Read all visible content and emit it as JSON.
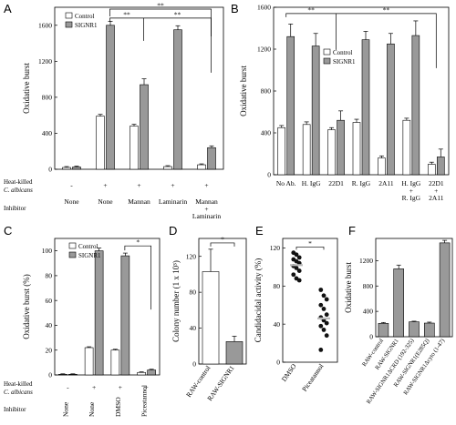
{
  "panels": [
    {
      "letter": "A"
    },
    {
      "letter": "B"
    },
    {
      "letter": "C"
    },
    {
      "letter": "D"
    },
    {
      "letter": "E"
    },
    {
      "letter": "F"
    }
  ],
  "chart_data": [
    {
      "panel": "A",
      "type": "bar",
      "ylabel": "Oxidative burst",
      "ylim": [
        0,
        1800
      ],
      "yticks": [
        0,
        400,
        800,
        1200,
        1600
      ],
      "series": [
        {
          "name": "Control",
          "color": "#ffffff",
          "values": [
            20,
            590,
            480,
            30,
            50
          ],
          "errors": [
            5,
            15,
            15,
            5,
            5
          ]
        },
        {
          "name": "SIGNR1",
          "color": "#999999",
          "values": [
            25,
            1600,
            940,
            1550,
            240
          ],
          "errors": [
            5,
            40,
            60,
            40,
            15
          ]
        }
      ],
      "row1_label": "Heat-killed",
      "row1_label2": "C. albicans",
      "row1": [
        "-",
        "+",
        "+",
        "+",
        "+"
      ],
      "row2_label": "Inhibitor",
      "row2": [
        "None",
        "None",
        "Mannan",
        "Laminarin",
        "Mannan\n+\nLaminarin"
      ],
      "significance": [
        {
          "from": 1,
          "to": 2,
          "label": "**"
        },
        {
          "from": 2,
          "to": 4,
          "label": "**"
        },
        {
          "from": 1,
          "to": 4,
          "label": "**"
        }
      ]
    },
    {
      "panel": "B",
      "type": "bar",
      "ylabel": "Oxidative burst",
      "ylim": [
        0,
        1600
      ],
      "yticks": [
        0,
        400,
        800,
        1200,
        1600
      ],
      "categories": [
        "No Ab.",
        "H. IgG",
        "22D1",
        "R. IgG",
        "2A11",
        "H. IgG\n+\nR. IgG",
        "22D1\n+\n2A11"
      ],
      "series": [
        {
          "name": "Control",
          "color": "#ffffff",
          "values": [
            450,
            480,
            430,
            500,
            160,
            520,
            100
          ],
          "errors": [
            10,
            15,
            10,
            20,
            10,
            10,
            10
          ]
        },
        {
          "name": "SIGNR1",
          "color": "#999999",
          "values": [
            1320,
            1230,
            520,
            1290,
            1250,
            1330,
            170
          ],
          "errors": [
            60,
            60,
            30,
            20,
            40,
            80,
            15
          ]
        }
      ],
      "significance": [
        {
          "from": 0,
          "to": 2,
          "label": "**"
        },
        {
          "from": 2,
          "to": 6,
          "label": "**"
        }
      ]
    },
    {
      "panel": "C",
      "type": "bar",
      "ylabel": "Oxidative burst  (%)",
      "ylim": [
        0,
        110
      ],
      "yticks": [
        0,
        20,
        40,
        60,
        80,
        100
      ],
      "series": [
        {
          "name": "Control",
          "color": "#ffffff",
          "values": [
            0.5,
            22,
            20,
            2
          ],
          "errors": [
            0.2,
            0.5,
            0.5,
            0.3
          ]
        },
        {
          "name": "SIGNR1",
          "color": "#999999",
          "values": [
            0.5,
            100,
            96,
            4
          ],
          "errors": [
            0.2,
            2,
            2,
            0.4
          ]
        }
      ],
      "row1_label": "Heat-killed",
      "row1_label2": "C. albicans",
      "row1": [
        "-",
        "+",
        "+",
        "+"
      ],
      "row2_label": "Inhibitor",
      "row2": [
        "None",
        "None",
        "DMSO",
        "Piceatannol"
      ],
      "significance": [
        {
          "from": 2,
          "to": 3,
          "label": "*"
        }
      ]
    },
    {
      "panel": "D",
      "type": "bar",
      "ylabel": "Colony number  (1 x 10³)",
      "ylim": [
        0,
        140
      ],
      "yticks": [
        0,
        40,
        80,
        120
      ],
      "categories": [
        "RAW-control",
        "RAW-SIGNR1"
      ],
      "values": [
        103,
        25
      ],
      "errors": [
        25,
        6
      ],
      "colors": [
        "#ffffff",
        "#999999"
      ],
      "significance": [
        {
          "from": 0,
          "to": 1,
          "label": "*"
        }
      ]
    },
    {
      "panel": "E",
      "type": "scatter",
      "ylabel": "Candidacidal activity (%)",
      "ylim": [
        0,
        130
      ],
      "yticks": [
        0,
        40,
        80,
        120
      ],
      "categories": [
        "DMSO",
        "Piceatannol"
      ],
      "groups": [
        {
          "name": "DMSO",
          "values": [
            115,
            113,
            110,
            108,
            106,
            104,
            101,
            99,
            96,
            92,
            88,
            86
          ],
          "mean": 102
        },
        {
          "name": "Piceatannol",
          "values": [
            76,
            70,
            66,
            60,
            56,
            50,
            47,
            44,
            41,
            38,
            34,
            28,
            13
          ],
          "mean": 46
        }
      ],
      "significance": [
        {
          "from": 0,
          "to": 1,
          "label": "*"
        }
      ]
    },
    {
      "panel": "F",
      "type": "bar",
      "ylabel": "Oxidative burst",
      "ylim": [
        0,
        1550
      ],
      "yticks": [
        0,
        400,
        800,
        1200
      ],
      "categories": [
        "RAW-control",
        "RAW-SIGNR1",
        "RAW-SIGNR1ΔCRD (192-325)",
        "RAW-SIGNR1(E285Q)",
        "RAW-SIGNR1Δcyto (1-47)"
      ],
      "values": [
        210,
        1070,
        235,
        215,
        1480
      ],
      "errors": [
        15,
        60,
        10,
        15,
        40
      ],
      "colors": [
        "#999999",
        "#999999",
        "#999999",
        "#999999",
        "#999999"
      ]
    }
  ]
}
